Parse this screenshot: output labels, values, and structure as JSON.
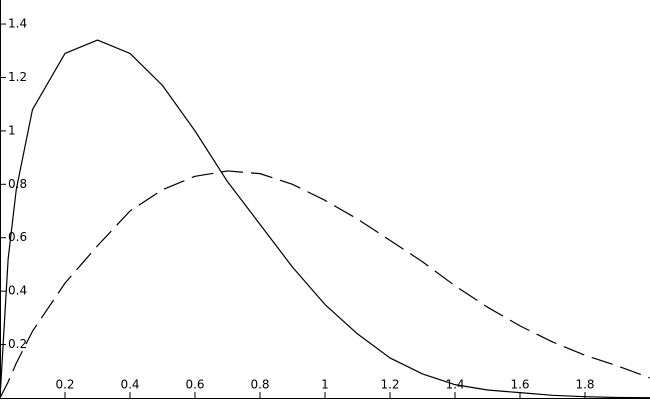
{
  "chart_data": {
    "type": "line",
    "x": [
      0,
      0.025,
      0.05,
      0.1,
      0.2,
      0.3,
      0.4,
      0.5,
      0.6,
      0.7,
      0.8,
      0.9,
      1.0,
      1.1,
      1.2,
      1.3,
      1.4,
      1.5,
      1.6,
      1.7,
      1.8,
      1.9,
      2.0
    ],
    "series": [
      {
        "color": "#000000",
        "dash": "solid",
        "values": [
          0,
          0.52,
          0.78,
          1.08,
          1.29,
          1.34,
          1.29,
          1.17,
          1.0,
          0.81,
          0.65,
          0.49,
          0.35,
          0.24,
          0.15,
          0.09,
          0.05,
          0.03,
          0.02,
          0.01,
          0.005,
          0.002,
          0.001
        ]
      },
      {
        "color": "#000000",
        "dash": "dashed",
        "values": [
          0,
          0.06,
          0.13,
          0.25,
          0.43,
          0.57,
          0.7,
          0.78,
          0.83,
          0.85,
          0.84,
          0.8,
          0.74,
          0.67,
          0.59,
          0.51,
          0.42,
          0.34,
          0.27,
          0.21,
          0.16,
          0.12,
          0.075
        ]
      }
    ],
    "xlim": [
      0,
      2
    ],
    "ylim": [
      0,
      1.49
    ],
    "xticks": [
      0.2,
      0.4,
      0.6,
      0.8,
      1,
      1.2,
      1.4,
      1.6,
      1.8
    ],
    "yticks": [
      0.2,
      0.4,
      0.6,
      0.8,
      1,
      1.2,
      1.4
    ],
    "grid": false
  }
}
